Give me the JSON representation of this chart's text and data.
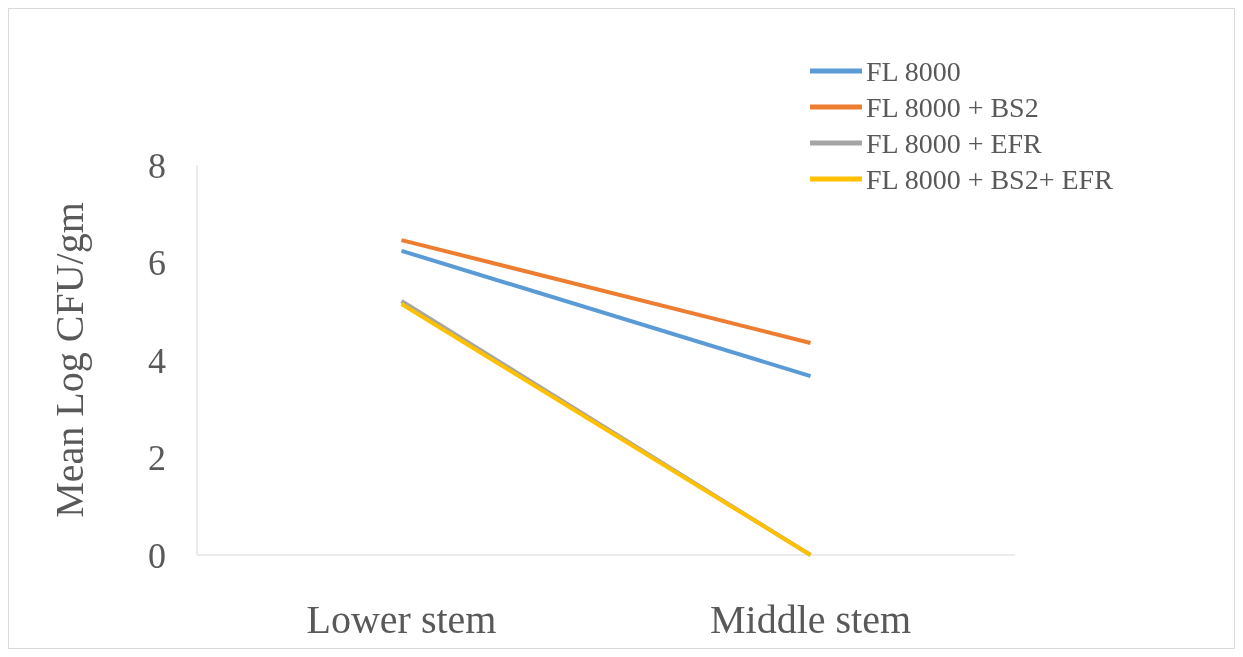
{
  "chart_data": {
    "type": "line",
    "ylabel": "Mean Log CFU/gm",
    "categories": [
      "Lower stem",
      "Middle stem"
    ],
    "ylim": [
      0,
      8
    ],
    "yticks": [
      0,
      2,
      4,
      6,
      8
    ],
    "grid": false,
    "legend": "top right",
    "marker": "none",
    "line_style": "solid",
    "series": [
      {
        "name": "FL 8000",
        "color": "#5b9bd5",
        "values": [
          6.24,
          3.67
        ]
      },
      {
        "name": "FL 8000 + BS2",
        "color": "#ed7d31",
        "values": [
          6.46,
          4.35
        ]
      },
      {
        "name": "FL 8000 + EFR",
        "color": "#a5a5a5",
        "values": [
          5.21,
          0
        ]
      },
      {
        "name": "FL 8000 + BS2+ EFR",
        "color": "#ffc000",
        "values": [
          5.15,
          0
        ]
      }
    ]
  }
}
